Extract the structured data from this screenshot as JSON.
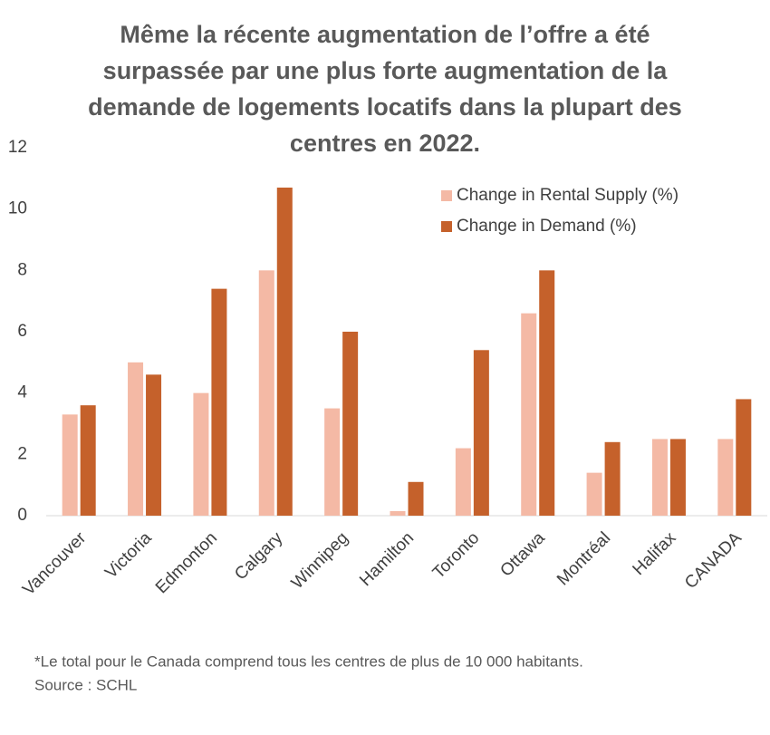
{
  "chart_data": {
    "type": "bar",
    "title": "Même la récente augmentation de l’offre a été surpassée par une plus forte augmentation de la demande de logements locatifs dans la plupart des centres en 2022.",
    "categories": [
      "Vancouver",
      "Victoria",
      "Edmonton",
      "Calgary",
      "Winnipeg",
      "Hamilton",
      "Toronto",
      "Ottawa",
      "Montréal",
      "Halifax",
      "CANADA"
    ],
    "series": [
      {
        "name": "Change in Rental Supply (%)",
        "color": "#f4b9a5",
        "values": [
          3.3,
          5.0,
          4.0,
          8.0,
          3.5,
          0.15,
          2.2,
          6.6,
          1.4,
          2.5,
          2.5
        ]
      },
      {
        "name": "Change in Demand (%)",
        "color": "#c5612b",
        "values": [
          3.6,
          4.6,
          7.4,
          10.7,
          6.0,
          1.1,
          5.4,
          8.0,
          2.4,
          2.5,
          3.8
        ]
      }
    ],
    "ylim": [
      0,
      12
    ],
    "yticks": [
      0,
      2,
      4,
      6,
      8,
      10,
      12
    ],
    "grid": false,
    "legend": "top-right",
    "notes": [
      "*Le total pour le Canada comprend tous les centres de plus de 10 000 habitants.",
      "Source : SCHL"
    ]
  }
}
